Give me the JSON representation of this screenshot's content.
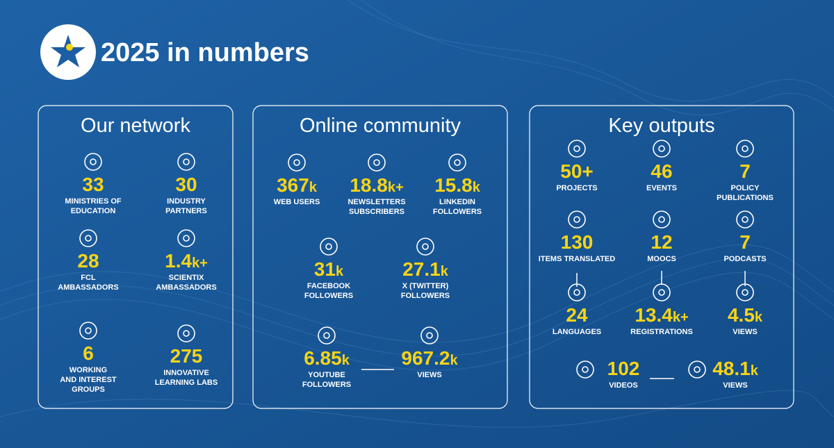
{
  "header": {
    "title": "2025 in numbers"
  },
  "panels": [
    {
      "title": "Our network",
      "items": [
        {
          "number": "33",
          "label": [
            "MINISTRIES OF",
            "EDUCATION"
          ]
        },
        {
          "number": "30",
          "label": [
            "INDUSTRY",
            "PARTNERS"
          ]
        },
        {
          "number": "28",
          "label": [
            "FCL",
            "AMBASSADORS"
          ]
        },
        {
          "number": "1.4",
          "unit": "k+",
          "label": [
            "SCIENTIX",
            "AMBASSADORS"
          ]
        },
        {
          "number": "6",
          "label": [
            "WORKING",
            "AND INTEREST",
            "GROUPS"
          ]
        },
        {
          "number": "275",
          "label": [
            "INNOVATIVE",
            "LEARNING LABS"
          ]
        }
      ]
    },
    {
      "title": "Online community",
      "items": [
        {
          "number": "367",
          "unit": "k",
          "label": [
            "WEB USERS"
          ]
        },
        {
          "number": "18.8",
          "unit": "k+",
          "label": [
            "NEWSLETTERS",
            "SUBSCRIBERS"
          ]
        },
        {
          "number": "15.8",
          "unit": "k",
          "label": [
            "LINKEDIN",
            "FOLLOWERS"
          ]
        },
        {
          "number": "31",
          "unit": "k",
          "label": [
            "FACEBOOK",
            "FOLLOWERS"
          ]
        },
        {
          "number": "27.1",
          "unit": "k",
          "label": [
            "X (TWITTER)",
            "FOLLOWERS"
          ]
        },
        {
          "number": "6.85",
          "unit": "k",
          "label": [
            "YOUTUBE",
            "FOLLOWERS"
          ]
        },
        {
          "number": "967.2",
          "unit": "k",
          "label": [
            "VIEWS"
          ]
        }
      ]
    },
    {
      "title": "Key outputs",
      "items": [
        {
          "number": "50+",
          "label": [
            "PROJECTS"
          ]
        },
        {
          "number": "46",
          "label": [
            "EVENTS"
          ]
        },
        {
          "number": "7",
          "label": [
            "POLICY",
            "PUBLICATIONS"
          ]
        },
        {
          "number": "130",
          "label": [
            "ITEMS TRANSLATED"
          ]
        },
        {
          "number": "12",
          "label": [
            "MOOCS"
          ]
        },
        {
          "number": "7",
          "label": [
            "PODCASTS"
          ]
        },
        {
          "number": "24",
          "label": [
            "LANGUAGES"
          ]
        },
        {
          "number": "13.4",
          "unit": "k+",
          "label": [
            "REGISTRATIONS"
          ]
        },
        {
          "number": "4.5",
          "unit": "k",
          "label": [
            "VIEWS"
          ]
        },
        {
          "number": "102",
          "label": [
            "VIDEOS"
          ]
        },
        {
          "number": "48.1",
          "unit": "k",
          "label": [
            "VIEWS"
          ]
        }
      ]
    }
  ]
}
